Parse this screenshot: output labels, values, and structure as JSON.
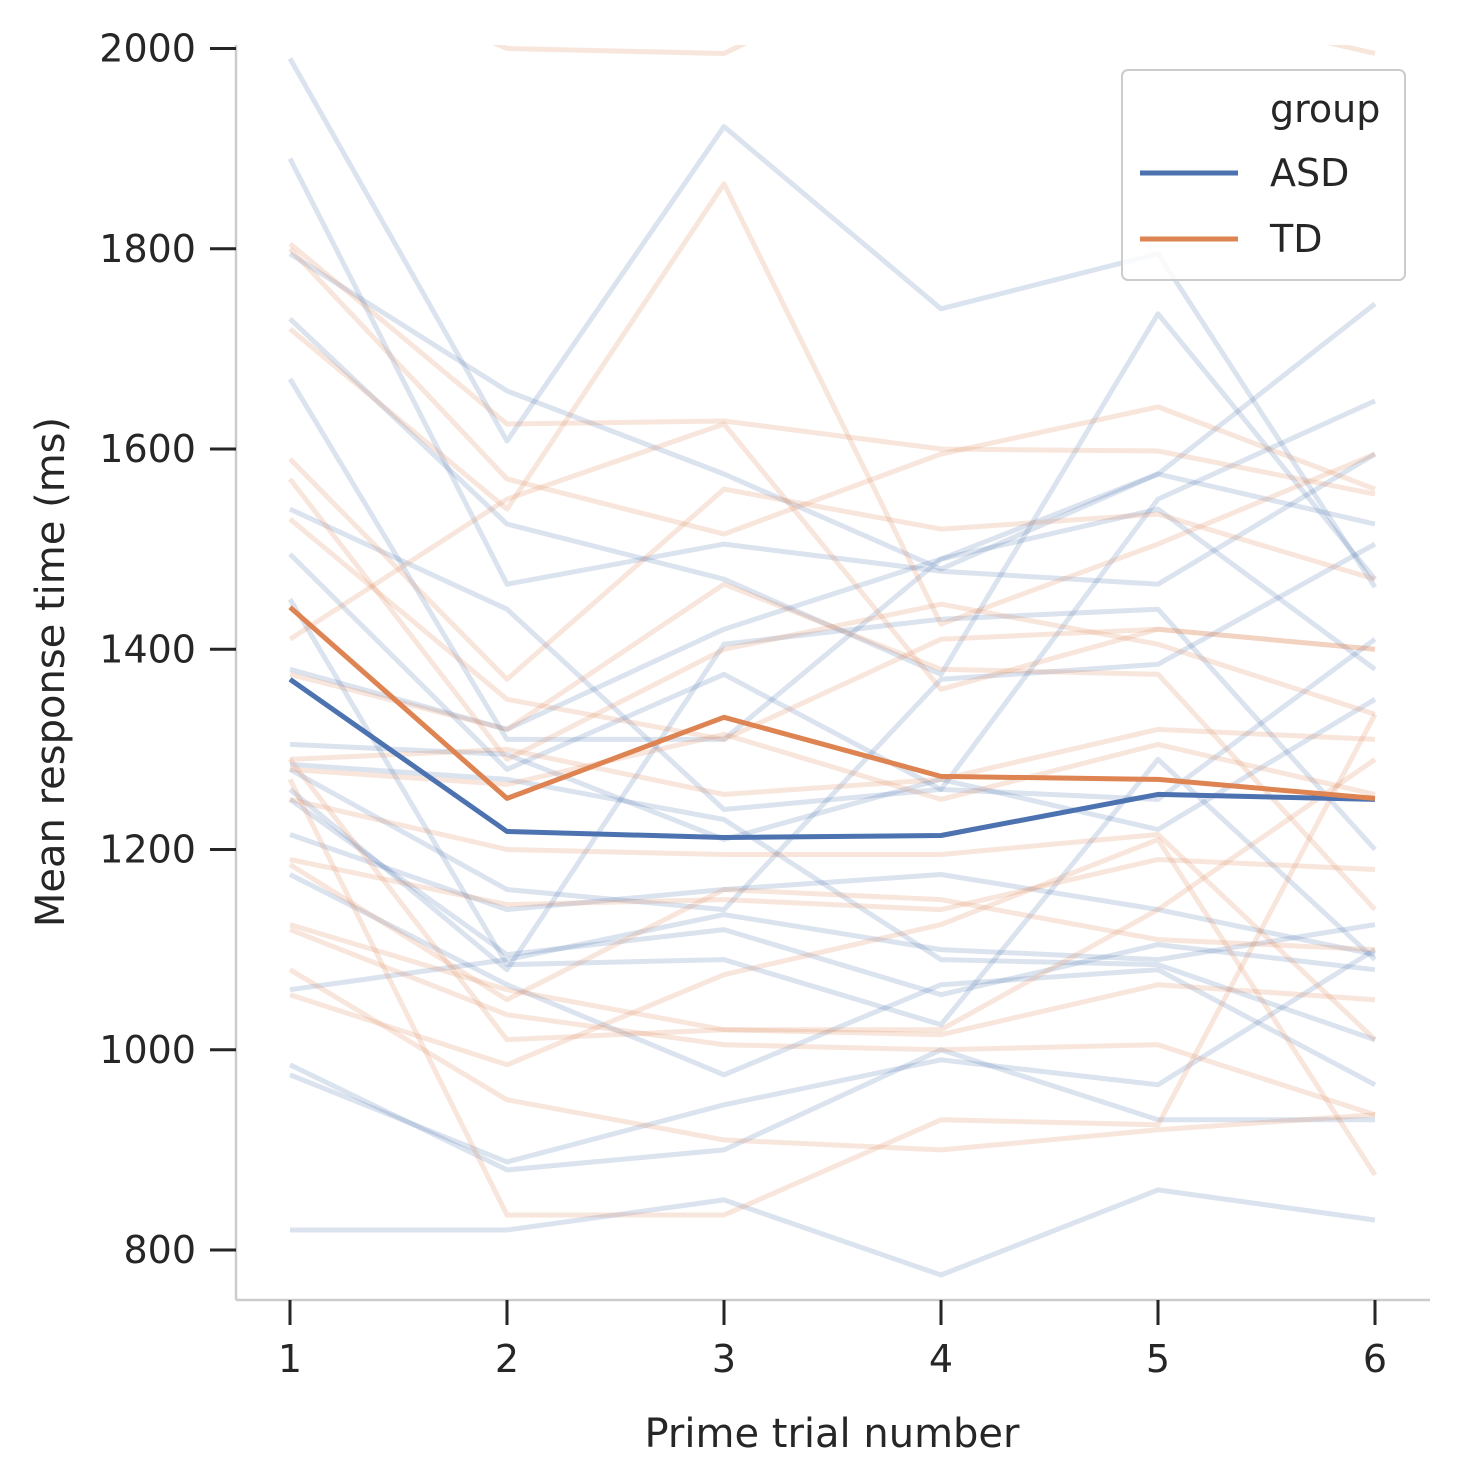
{
  "chart_data": {
    "type": "line",
    "title": "",
    "xlabel": "Prime trial number",
    "ylabel": "Mean response time (ms)",
    "x": [
      1,
      2,
      3,
      4,
      5,
      6
    ],
    "xticks": [
      "1",
      "2",
      "3",
      "4",
      "5",
      "6"
    ],
    "yticks": [
      "800",
      "1000",
      "1200",
      "1400",
      "1600",
      "1800",
      "2000"
    ],
    "xlim": [
      0.75,
      6.25
    ],
    "ylim": [
      750,
      2000
    ],
    "grid": false,
    "legend": {
      "title": "group",
      "placement": "top-right",
      "entries": [
        {
          "label": "ASD",
          "color": "#4c72b0"
        },
        {
          "label": "TD",
          "color": "#dd8452"
        }
      ]
    },
    "series": [
      {
        "name": "ASD",
        "color": "#4c72b0",
        "values": [
          1370,
          1218,
          1212,
          1214,
          1255,
          1250
        ]
      },
      {
        "name": "TD",
        "color": "#dd8452",
        "values": [
          1442,
          1251,
          1332,
          1273,
          1270,
          1251
        ]
      }
    ],
    "individual_series": {
      "ASD": [
        [
          1990,
          1608,
          1922,
          1740,
          1795,
          1462
        ],
        [
          1890,
          1465,
          1505,
          1478,
          1465,
          1595
        ],
        [
          1795,
          1658,
          1575,
          1480,
          1575,
          1745
        ],
        [
          1730,
          1525,
          1470,
          1375,
          1735,
          1470
        ],
        [
          1670,
          1310,
          1310,
          1490,
          1540,
          1380
        ],
        [
          1540,
          1440,
          1240,
          1260,
          1250,
          1410
        ],
        [
          1495,
          1280,
          1375,
          1260,
          1550,
          1648
        ],
        [
          1450,
          1085,
          1090,
          1025,
          1290,
          1090
        ],
        [
          1380,
          1320,
          1420,
          1490,
          1575,
          1525
        ],
        [
          1305,
          1295,
          1210,
          1270,
          1220,
          1350
        ],
        [
          1285,
          1270,
          1230,
          1090,
          1085,
          1010
        ],
        [
          1280,
          1160,
          1140,
          1370,
          1385,
          1505
        ],
        [
          1250,
          1095,
          1120,
          1055,
          1105,
          1080
        ],
        [
          1215,
          1140,
          1160,
          1175,
          1140,
          1095
        ],
        [
          1175,
          1065,
          975,
          1065,
          1080,
          965
        ],
        [
          1060,
          1090,
          1135,
          1100,
          1090,
          1125
        ],
        [
          985,
          880,
          900,
          1000,
          930,
          930
        ],
        [
          975,
          888,
          945,
          990,
          965,
          1100
        ],
        [
          820,
          820,
          850,
          775,
          860,
          830
        ],
        [
          1260,
          1080,
          1405,
          1430,
          1440,
          1200
        ]
      ],
      "TD": [
        [
          2090,
          2000,
          1995,
          2100,
          2045,
          1995
        ],
        [
          1805,
          1625,
          1628,
          1600,
          1598,
          1555
        ],
        [
          1800,
          1570,
          1515,
          1595,
          1642,
          1560
        ],
        [
          1720,
          1540,
          1865,
          1425,
          1505,
          1595
        ],
        [
          1590,
          1370,
          1560,
          1520,
          1535,
          1470
        ],
        [
          1570,
          1290,
          1400,
          1445,
          1405,
          1335
        ],
        [
          1530,
          1350,
          1310,
          1410,
          1420,
          1400
        ],
        [
          1410,
          1550,
          1625,
          1360,
          1420,
          1400
        ],
        [
          1375,
          1320,
          1465,
          1380,
          1375,
          1140
        ],
        [
          1290,
          1300,
          1255,
          1270,
          1320,
          1310
        ],
        [
          1280,
          1265,
          1315,
          1250,
          1305,
          1255
        ],
        [
          1250,
          1200,
          1195,
          1195,
          1215,
          1010
        ],
        [
          1190,
          1145,
          1150,
          1140,
          1190,
          1180
        ],
        [
          1185,
          1050,
          1160,
          1150,
          1110,
          1100
        ],
        [
          1125,
          1060,
          1020,
          1015,
          1065,
          1050
        ],
        [
          1120,
          1035,
          1005,
          1000,
          1005,
          935
        ],
        [
          1080,
          950,
          910,
          900,
          920,
          935
        ],
        [
          1055,
          985,
          1075,
          1125,
          1210,
          875
        ],
        [
          1290,
          1010,
          1020,
          1020,
          1140,
          1290
        ],
        [
          1270,
          835,
          835,
          930,
          925,
          1335
        ]
      ]
    }
  }
}
